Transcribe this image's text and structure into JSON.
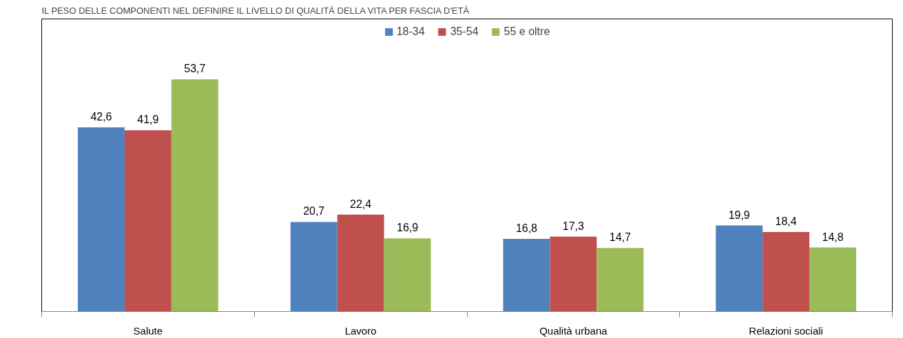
{
  "chart_data": {
    "type": "bar",
    "title": "IL PESO DELLE COMPONENTI NEL DEFINIRE IL LIVELLO DI QUALITÀ DELLA VITA PER FASCIA D'ETÀ",
    "categories": [
      "Salute",
      "Lavoro",
      "Qualità urbana",
      "Relazioni sociali"
    ],
    "series": [
      {
        "name": "18-34",
        "color": "#4f81bd",
        "values": [
          42.6,
          20.7,
          16.8,
          19.9
        ],
        "value_labels": [
          "42,6",
          "20,7",
          "16,8",
          "19,9"
        ]
      },
      {
        "name": "35-54",
        "color": "#c0504d",
        "values": [
          41.9,
          22.4,
          17.3,
          18.4
        ],
        "value_labels": [
          "41,9",
          "22,4",
          "17,3",
          "18,4"
        ]
      },
      {
        "name": "55 e oltre",
        "color": "#9bbb59",
        "values": [
          53.7,
          16.9,
          14.7,
          14.8
        ],
        "value_labels": [
          "53,7",
          "16,9",
          "14,7",
          "14,8"
        ]
      }
    ],
    "legend": "top",
    "grid": false
  }
}
